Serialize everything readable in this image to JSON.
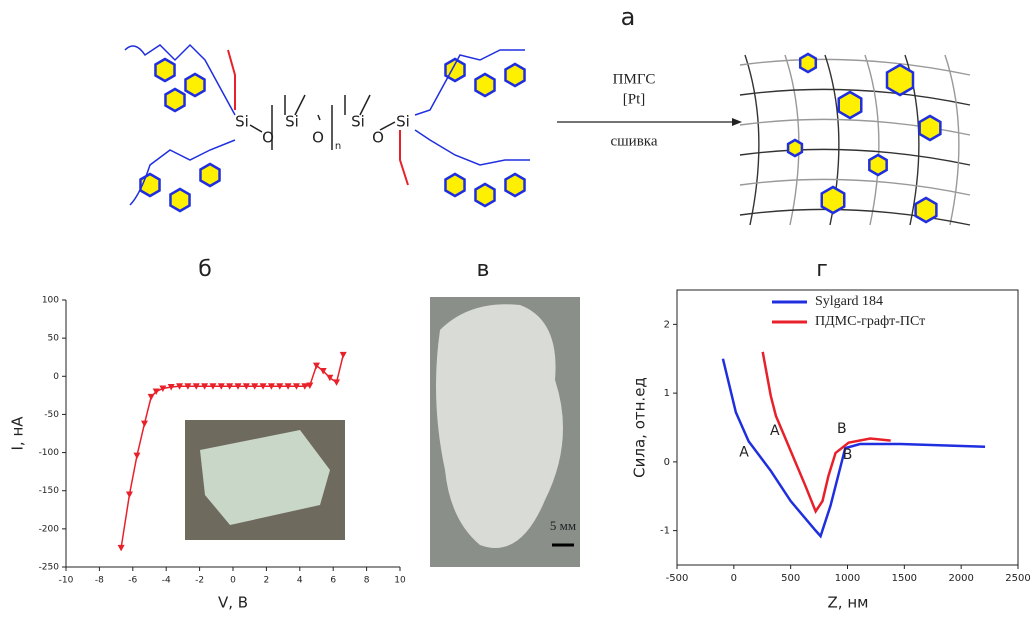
{
  "scheme": {
    "letter": "а",
    "reagent": "ПМГС",
    "catalyst": "[Pt]",
    "process": "сшивка",
    "atoms": [
      "Si",
      "O",
      "Si",
      "O",
      "n",
      "Si",
      "O",
      "Si"
    ]
  },
  "photo": {
    "letter": "в",
    "scale_bar": "5 мм"
  },
  "chart_data": [
    {
      "type": "line",
      "title": "б",
      "x_label": "V, В",
      "y_label": "I, нА",
      "color": "#e8202a",
      "marker": "triangle-down",
      "x": [
        -6.7,
        -6.2,
        -5.75,
        -5.3,
        -4.9,
        -4.6,
        -4.2,
        -3.7,
        -3.2,
        -2.7,
        -2.2,
        -1.7,
        -1.2,
        -0.7,
        -0.2,
        0.3,
        0.8,
        1.3,
        1.8,
        2.3,
        2.8,
        3.3,
        3.8,
        4.3,
        4.6,
        5.0,
        5.4,
        5.8,
        6.2,
        6.6
      ],
      "values": [
        -225,
        -155,
        -104,
        -62,
        -27,
        -20,
        -16,
        -14,
        -13,
        -13,
        -13,
        -13,
        -13,
        -13,
        -13,
        -13,
        -13,
        -13,
        -13,
        -13,
        -13,
        -13,
        -13,
        -13,
        -12,
        14,
        7,
        -2,
        -8,
        28
      ],
      "xlim": [
        -10,
        10
      ],
      "xticks": [
        -10,
        -8,
        -6,
        -4,
        -2,
        0,
        2,
        4,
        6,
        8,
        10
      ],
      "ylim": [
        -250,
        100
      ],
      "yticks": [
        -250,
        -200,
        -150,
        -100,
        -50,
        0,
        50,
        100
      ]
    },
    {
      "type": "line",
      "title": "г",
      "x_label": "Z, нм",
      "y_label": "Сила, отн.ед",
      "series": [
        {
          "name": "Sylgard 184",
          "color": "#1f2fe0",
          "x": [
            -96,
            18,
            130,
            325,
            500,
            720,
            763,
            850,
            940,
            980,
            1110,
            1465,
            2210
          ],
          "values": [
            1.5,
            0.72,
            0.3,
            -0.13,
            -0.57,
            -1.0,
            -1.08,
            -0.64,
            -0.06,
            0.2,
            0.26,
            0.26,
            0.22
          ]
        },
        {
          "name": "ПДМС-графт-ПСт",
          "color": "#e8202a",
          "x": [
            254,
            325,
            370,
            500,
            630,
            720,
            780,
            833,
            895,
            1010,
            1200,
            1380
          ],
          "values": [
            1.6,
            0.96,
            0.67,
            0.16,
            -0.35,
            -0.72,
            -0.57,
            -0.2,
            0.13,
            0.28,
            0.34,
            0.31
          ]
        }
      ],
      "annotations": [
        {
          "text": "A",
          "x": 90,
          "y": 0.14,
          "color": "#333333"
        },
        {
          "text": "A",
          "x": 360,
          "y": 0.45,
          "color": "#e8202a"
        },
        {
          "text": "B",
          "x": 950,
          "y": 0.48,
          "color": "#e8202a"
        },
        {
          "text": "B",
          "x": 1000,
          "y": 0.1,
          "color": "#333333"
        }
      ],
      "xlim": [
        -500,
        2500
      ],
      "xticks": [
        -500,
        0,
        500,
        1000,
        1500,
        2000,
        2500
      ],
      "ylim": [
        -1.5,
        2.5
      ],
      "yticks": [
        -1,
        0,
        1,
        2
      ]
    }
  ]
}
